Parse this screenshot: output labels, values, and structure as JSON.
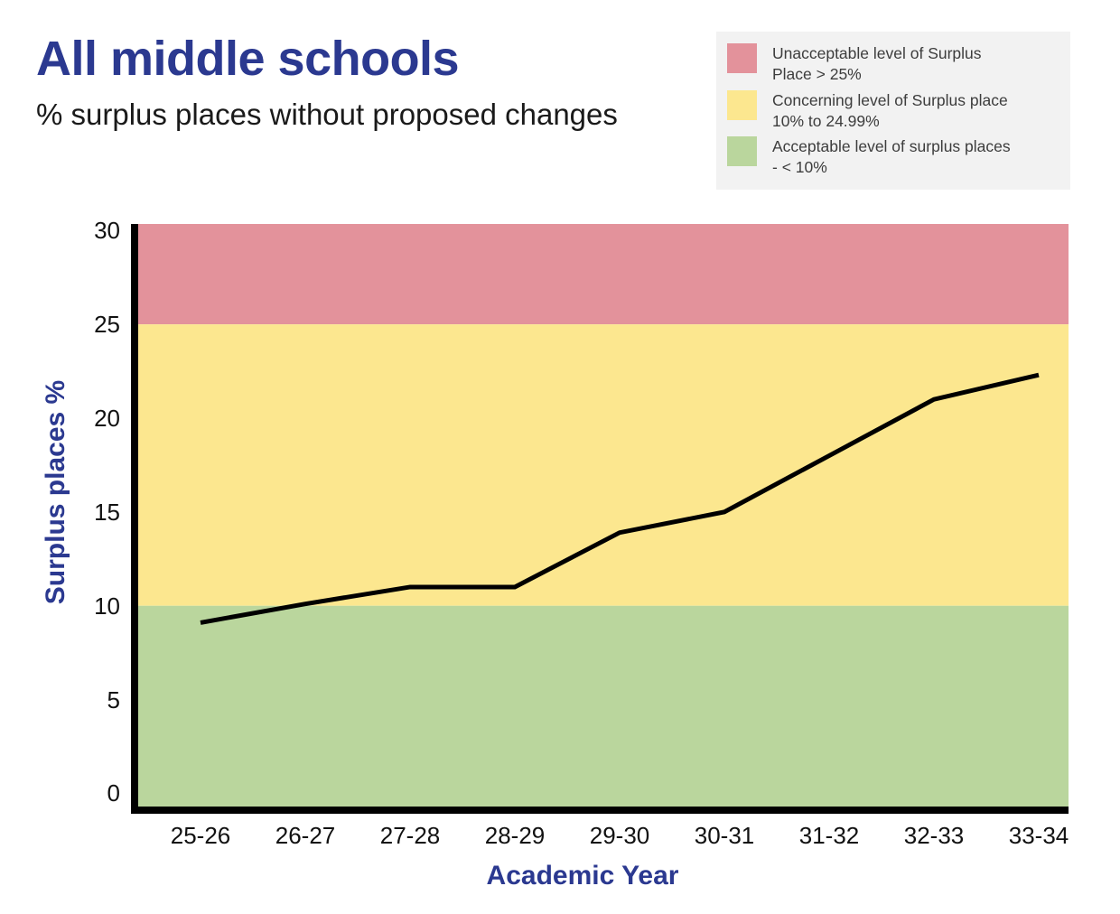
{
  "header": {
    "title": "All middle schools",
    "subtitle": "% surplus places without proposed changes"
  },
  "legend": {
    "items": [
      {
        "name": "unacceptable",
        "color": "#e3929b",
        "line1": "Unacceptable level of Surplus",
        "line2": "Place > 25%"
      },
      {
        "name": "concerning",
        "color": "#fce78f",
        "line1": "Concerning level of Surplus place",
        "line2": "10% to 24.99%"
      },
      {
        "name": "acceptable",
        "color": "#bad69d",
        "line1": "Acceptable level of surplus places",
        "line2": "- < 10%"
      }
    ]
  },
  "chart_data": {
    "type": "line",
    "title": "All middle schools",
    "subtitle": "% surplus places without proposed changes",
    "categories": [
      "25-26",
      "26-27",
      "27-28",
      "28-29",
      "29-30",
      "30-31",
      "31-32",
      "32-33",
      "33-34"
    ],
    "values": [
      9.1,
      10.1,
      11.0,
      11.0,
      13.9,
      15.0,
      18.0,
      21.0,
      22.3
    ],
    "xlabel": "Academic Year",
    "ylabel": "Surplus places %",
    "y_ticks": [
      30,
      25,
      20,
      15,
      10,
      5,
      0
    ],
    "ylim": [
      -0.7,
      30.35
    ],
    "grid": false,
    "legend_position": "top-right",
    "line_color": "#000000",
    "axis_color": "#000000",
    "bands": [
      {
        "name": "unacceptable",
        "from": 25,
        "to": null,
        "color": "#e3929b"
      },
      {
        "name": "concerning",
        "from": 10,
        "to": 25,
        "color": "#fce78f"
      },
      {
        "name": "acceptable",
        "from": null,
        "to": 10,
        "color": "#bad69d"
      }
    ]
  }
}
